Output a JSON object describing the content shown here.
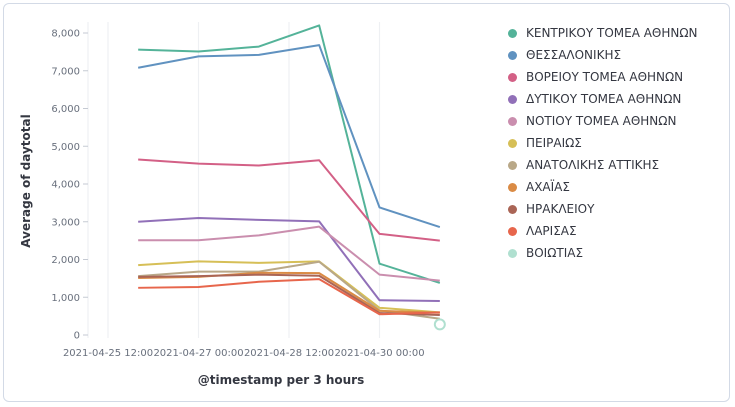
{
  "chart_data": {
    "type": "line",
    "ylabel": "Average of daytotal",
    "xlabel": "@timestamp per 3 hours",
    "y_ticks": [
      "0",
      "1,000",
      "2,000",
      "3,000",
      "4,000",
      "5,000",
      "6,000",
      "7,000",
      "8,000"
    ],
    "ylim": [
      0,
      8000
    ],
    "x_ticks": [
      "2021-04-25 12:00",
      "2021-04-27 00:00",
      "2021-04-28 12:00",
      "2021-04-30 00:00"
    ],
    "x": [
      "2021-04-26 00:00",
      "2021-04-27 00:00",
      "2021-04-28 00:00",
      "2021-04-29 00:00",
      "2021-04-30 00:00",
      "2021-05-01 00:00"
    ],
    "grid": "x",
    "legend_position": "right",
    "series": [
      {
        "name": "ΚΕΝΤΡΙΚΟΥ ΤΟΜΕΑ ΑΘΗΝΩΝ",
        "color": "#54b399",
        "values": [
          7560,
          7510,
          7640,
          8200,
          1890,
          1380
        ]
      },
      {
        "name": "ΘΕΣΣΑΛΟΝΙΚΗΣ",
        "color": "#6092c0",
        "values": [
          7080,
          7380,
          7420,
          7680,
          3380,
          2860
        ]
      },
      {
        "name": "ΒΟΡΕΙΟΥ ΤΟΜΕΑ ΑΘΗΝΩΝ",
        "color": "#d36086",
        "values": [
          4650,
          4540,
          4490,
          4630,
          2680,
          2500
        ]
      },
      {
        "name": "ΔΥΤΙΚΟΥ ΤΟΜΕΑ ΑΘΗΝΩΝ",
        "color": "#9170b8",
        "values": [
          3000,
          3100,
          3050,
          3010,
          920,
          900
        ]
      },
      {
        "name": "ΝΟΤΙΟΥ ΤΟΜΕΑ ΑΘΗΝΩΝ",
        "color": "#ca8eae",
        "values": [
          2510,
          2510,
          2640,
          2870,
          1600,
          1440
        ]
      },
      {
        "name": "ΠΕΙΡΑΙΩΣ",
        "color": "#d6bf57",
        "values": [
          1850,
          1950,
          1910,
          1950,
          720,
          600
        ]
      },
      {
        "name": "ΑΝΑΤΟΛΙΚΗΣ ΑΤΤΙΚΗΣ",
        "color": "#b9a888",
        "values": [
          1560,
          1680,
          1680,
          1940,
          650,
          430
        ]
      },
      {
        "name": "ΑΧΑΪΑΣ",
        "color": "#da8b45",
        "values": [
          1510,
          1540,
          1650,
          1640,
          640,
          590
        ]
      },
      {
        "name": "ΗΡΑΚΛΕΙΟΥ",
        "color": "#aa6556",
        "values": [
          1540,
          1560,
          1600,
          1570,
          580,
          530
        ]
      },
      {
        "name": "ΛΑΡΙΣΑΣ",
        "color": "#e7664c",
        "values": [
          1250,
          1270,
          1410,
          1480,
          550,
          600
        ]
      },
      {
        "name": "ΒΟΙΩΤΙΑΣ",
        "color": "#b0e0d0",
        "values": [
          null,
          null,
          null,
          null,
          null,
          280
        ]
      }
    ]
  }
}
